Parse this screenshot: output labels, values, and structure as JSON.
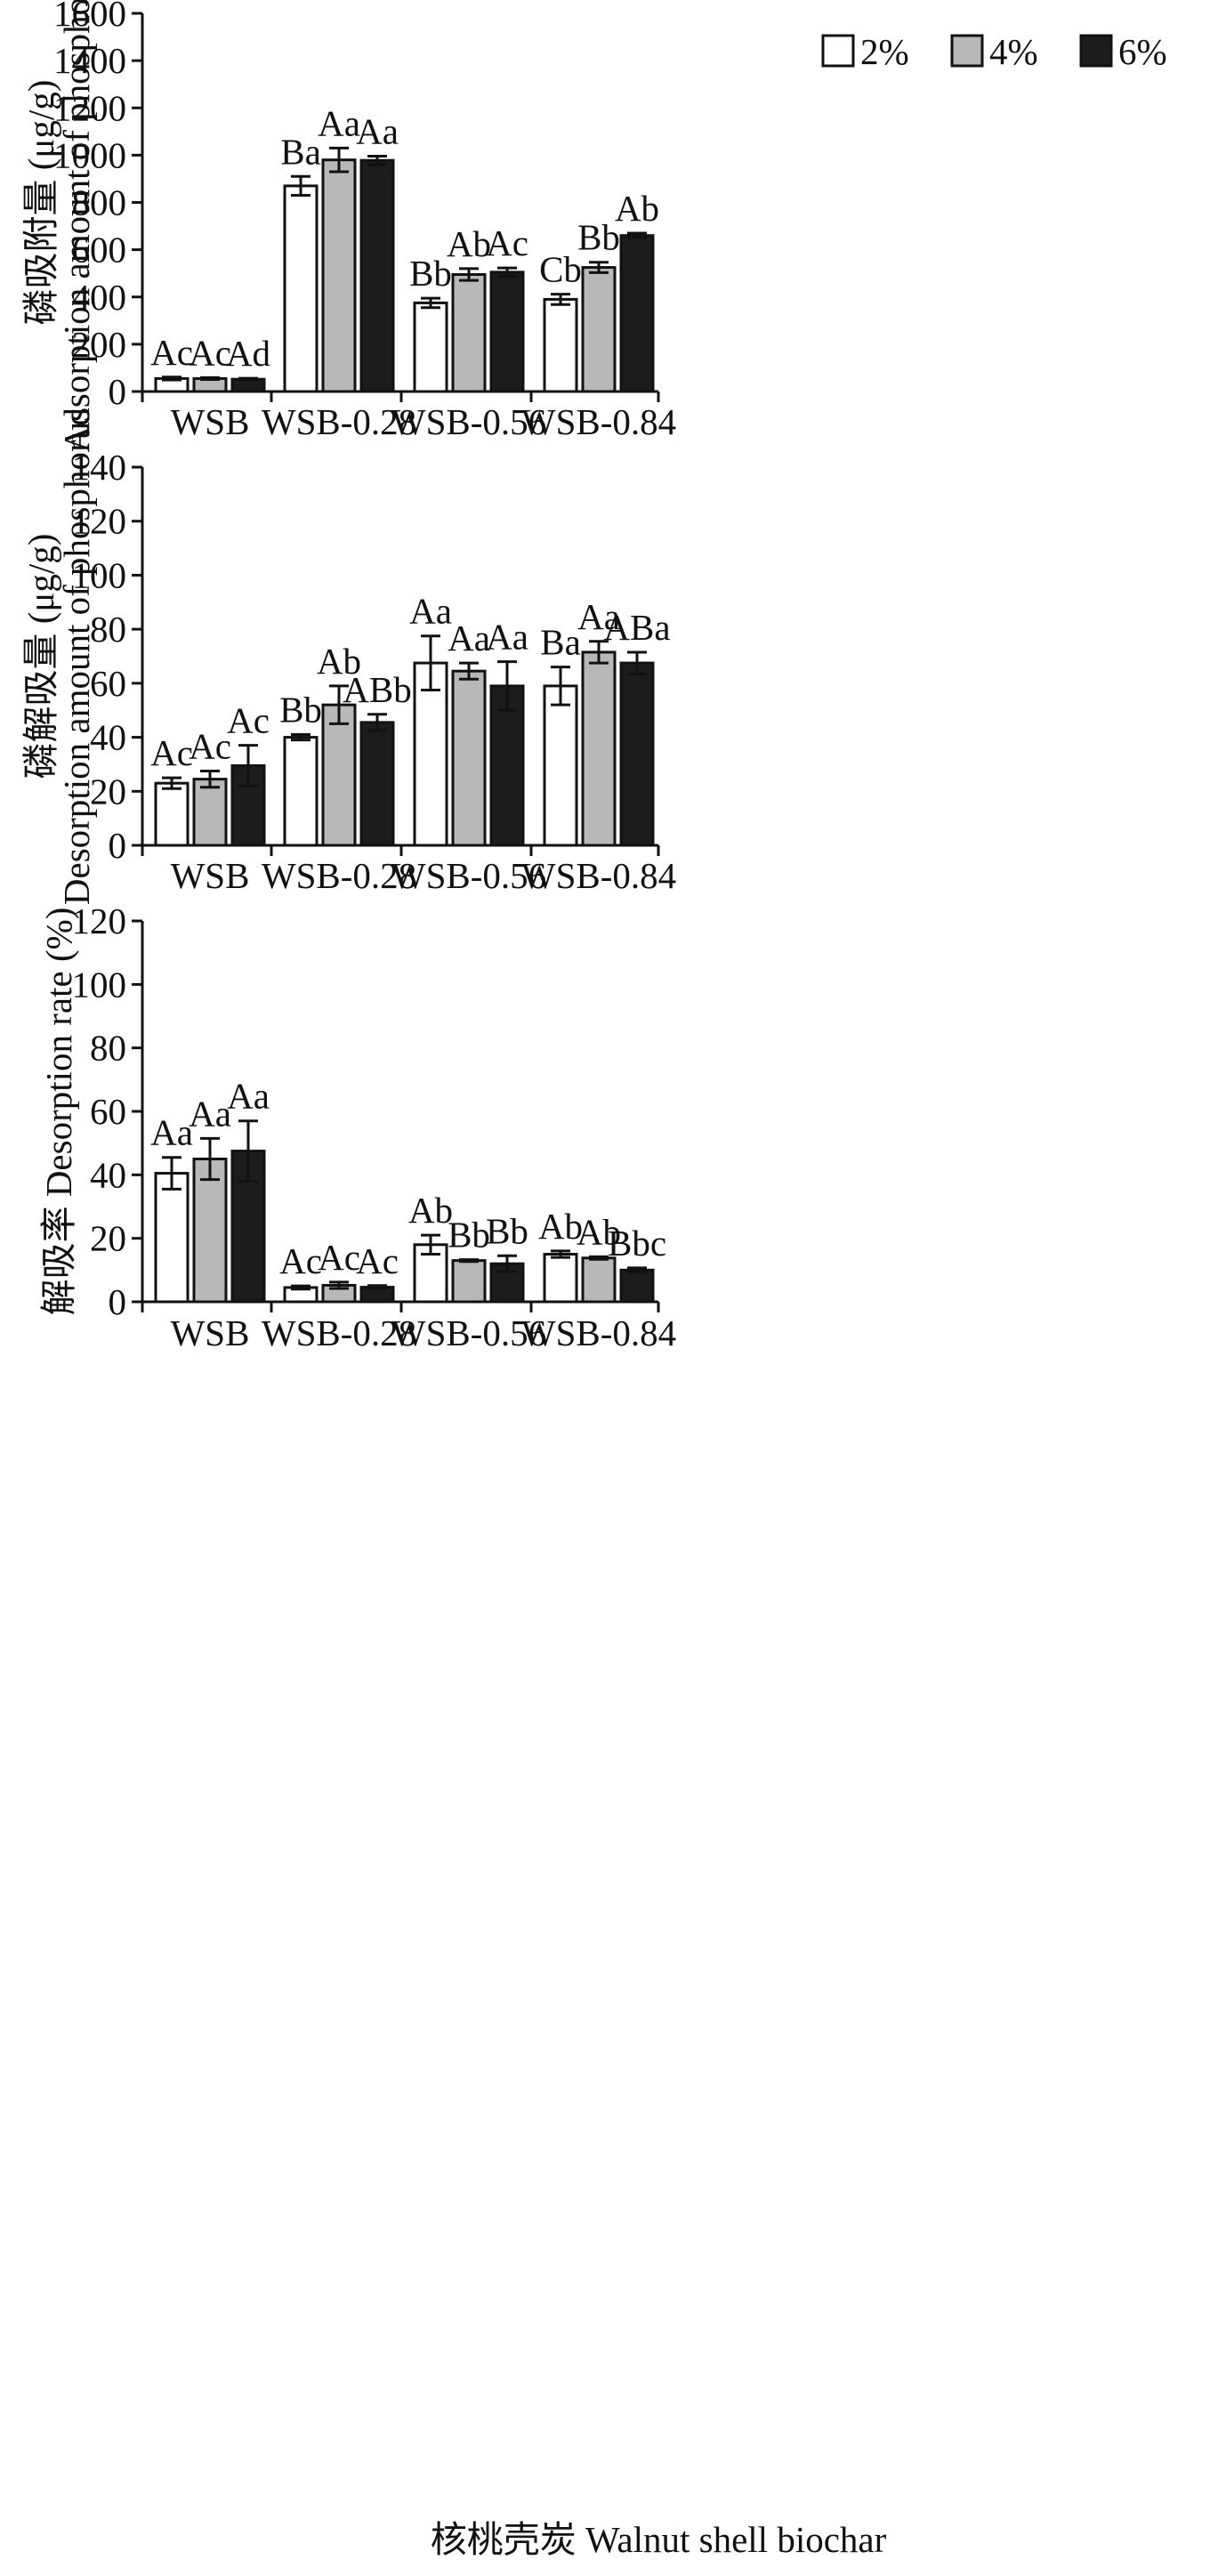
{
  "legend": [
    "2%",
    "4%",
    "6%"
  ],
  "colors": {
    "series": [
      "#ffffff",
      "#b8b8b8",
      "#1c1c1c"
    ],
    "axis": "#111111"
  },
  "x_title": "核桃壳炭 Walnut shell biochar",
  "chart_data": [
    {
      "type": "bar",
      "ylabel_cn": "磷吸附量 (μg/g)",
      "ylabel_en": "Adsorption amount of phosphorus",
      "ylim": [
        0,
        1600
      ],
      "yticks": [
        0,
        200,
        400,
        600,
        800,
        1000,
        1200,
        1400,
        1600
      ],
      "categories": [
        "WSB",
        "WSB-0.28",
        "WSB-0.56",
        "WSB-0.84"
      ],
      "series": [
        {
          "name": "2%",
          "values": [
            55,
            870,
            375,
            390
          ],
          "errors": [
            6,
            40,
            20,
            22
          ],
          "labels": [
            "Ac",
            "Ba",
            "Bb",
            "Cb"
          ]
        },
        {
          "name": "4%",
          "values": [
            55,
            980,
            495,
            525
          ],
          "errors": [
            4,
            50,
            25,
            22
          ],
          "labels": [
            "Ac",
            "Aa",
            "Ab",
            "Bb"
          ]
        },
        {
          "name": "6%",
          "values": [
            52,
            978,
            505,
            660
          ],
          "errors": [
            4,
            18,
            18,
            10
          ],
          "labels": [
            "Ad",
            "Aa",
            "Ac",
            "Ab"
          ]
        }
      ]
    },
    {
      "type": "bar",
      "ylabel_cn": "磷解吸量 (μg/g)",
      "ylabel_en": "Desorption amount of phosphorus",
      "ylim": [
        0,
        140
      ],
      "yticks": [
        0,
        20,
        40,
        60,
        80,
        100,
        120,
        140
      ],
      "categories": [
        "WSB",
        "WSB-0.28",
        "WSB-0.56",
        "WSB-0.84"
      ],
      "series": [
        {
          "name": "2%",
          "values": [
            23,
            40,
            67.5,
            59
          ],
          "errors": [
            2,
            1,
            10,
            7
          ],
          "labels": [
            "Ac",
            "Bb",
            "Aa",
            "Ba"
          ]
        },
        {
          "name": "4%",
          "values": [
            24.5,
            52,
            64.5,
            71.5
          ],
          "errors": [
            3,
            7,
            3,
            4
          ],
          "labels": [
            "Ac",
            "Ab",
            "Aa",
            "Aa"
          ]
        },
        {
          "name": "6%",
          "values": [
            29.5,
            45.5,
            59,
            67.5
          ],
          "errors": [
            7.5,
            3,
            9,
            4
          ],
          "labels": [
            "Ac",
            "ABb",
            "Aa",
            "ABa"
          ]
        }
      ]
    },
    {
      "type": "bar",
      "ylabel_cn": "解吸率",
      "ylabel_en": "Desorption rate (%)",
      "ylim": [
        0,
        120
      ],
      "yticks": [
        0,
        20,
        40,
        60,
        80,
        100,
        120
      ],
      "categories": [
        "WSB",
        "WSB-0.28",
        "WSB-0.56",
        "WSB-0.84"
      ],
      "series": [
        {
          "name": "2%",
          "values": [
            40.5,
            4.5,
            18,
            15
          ],
          "errors": [
            5,
            0.5,
            3,
            1
          ],
          "labels": [
            "Aa",
            "Ac",
            "Ab",
            "Ab"
          ]
        },
        {
          "name": "4%",
          "values": [
            45,
            5.2,
            13,
            13.8
          ],
          "errors": [
            6.5,
            1,
            0.3,
            0.4
          ],
          "labels": [
            "Aa",
            "Ac",
            "Bb",
            "Ab"
          ]
        },
        {
          "name": "6%",
          "values": [
            47.5,
            4.6,
            12,
            10
          ],
          "errors": [
            9.5,
            0.5,
            2.5,
            0.7
          ],
          "labels": [
            "Aa",
            "Ac",
            "Bb",
            "Bbc"
          ]
        }
      ]
    }
  ]
}
